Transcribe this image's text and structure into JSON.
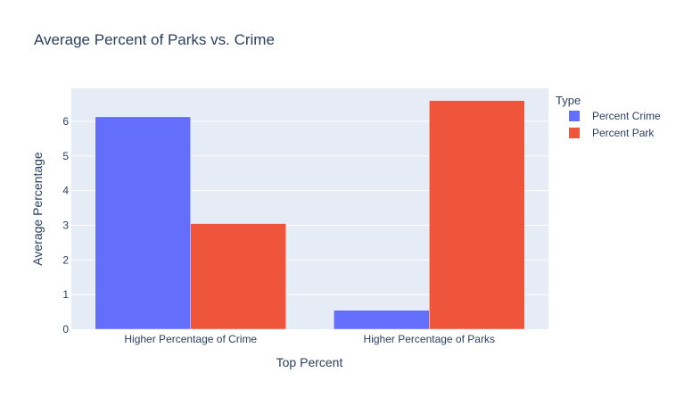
{
  "chart_data": {
    "type": "bar",
    "title": "Average Percent of Parks vs. Crime",
    "xlabel": "Top Percent",
    "ylabel": "Average Percentage",
    "categories": [
      "Higher Percentage of Crime",
      "Higher Percentage of Parks"
    ],
    "series": [
      {
        "name": "Percent Crime",
        "values": [
          6.13,
          0.55
        ],
        "color": "#636efa"
      },
      {
        "name": "Percent Park",
        "values": [
          3.05,
          6.6
        ],
        "color": "#ef553b"
      }
    ],
    "ylim": [
      0,
      6.95
    ],
    "yticks": [
      0,
      1,
      2,
      3,
      4,
      5,
      6
    ],
    "legend_title": "Type",
    "legend_position": "right",
    "grid": true,
    "plot_bg": "#e5ecf6",
    "text_color": "#2a3f5f"
  }
}
